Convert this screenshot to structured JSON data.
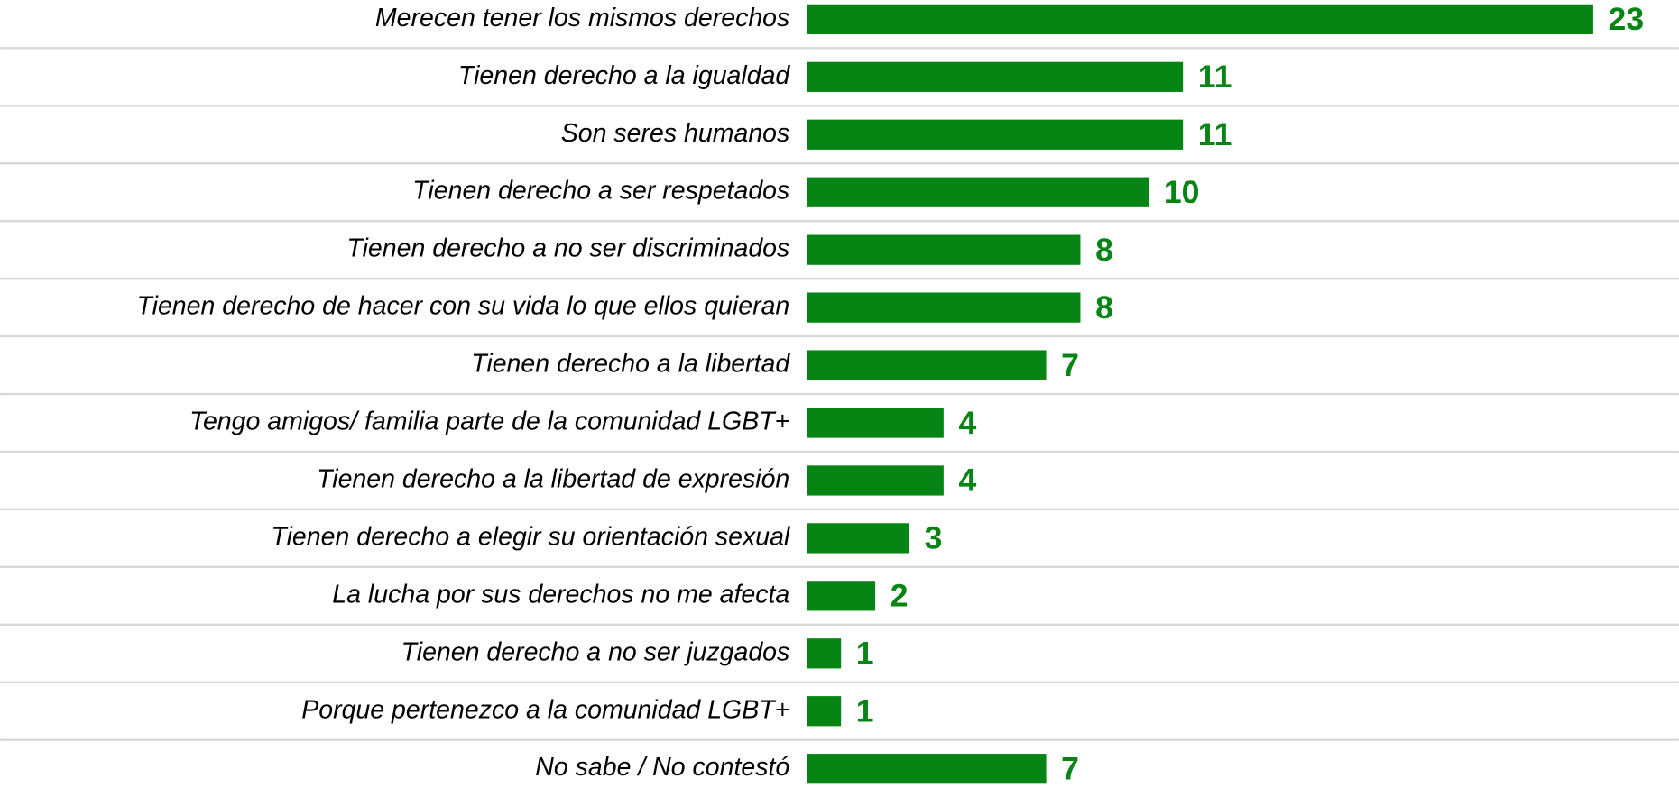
{
  "chart_data": {
    "type": "bar",
    "orientation": "horizontal",
    "color": "#068414",
    "categories": [
      "Merecen tener los mismos derechos",
      "Tienen derecho a la igualdad",
      "Son seres humanos",
      "Tienen derecho a ser respetados",
      "Tienen derecho a no ser discriminados",
      "Tienen derecho de hacer con su vida lo que ellos quieran",
      "Tienen derecho a la libertad",
      "Tengo amigos/ familia parte de la comunidad LGBT+",
      "Tienen derecho a la libertad de expresión",
      "Tienen derecho a elegir su orientación sexual",
      "La lucha por sus derechos no me afecta",
      "Tienen derecho a no ser juzgados",
      "Porque pertenezco a la comunidad LGBT+",
      "No sabe / No contestó"
    ],
    "values": [
      23,
      11,
      11,
      10,
      8,
      8,
      7,
      4,
      4,
      3,
      2,
      1,
      1,
      7
    ]
  }
}
